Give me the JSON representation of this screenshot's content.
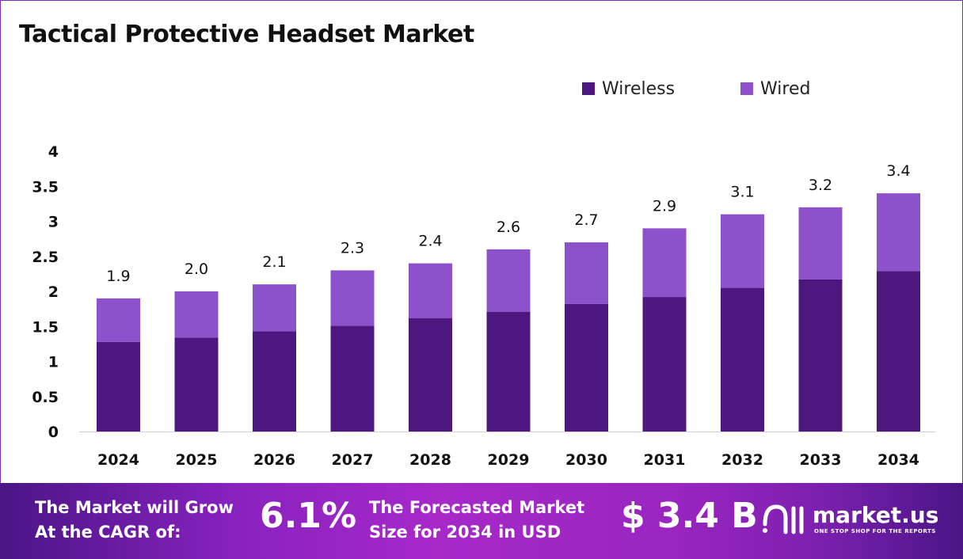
{
  "chart_data": {
    "type": "bar",
    "stacked": true,
    "title": "Tactical Protective Headset Market",
    "categories": [
      "2024",
      "2025",
      "2026",
      "2027",
      "2028",
      "2029",
      "2030",
      "2031",
      "2032",
      "2033",
      "2034"
    ],
    "series": [
      {
        "name": "Wireless",
        "color": "#4e1780",
        "values": [
          1.28,
          1.34,
          1.43,
          1.51,
          1.62,
          1.71,
          1.82,
          1.92,
          2.05,
          2.17,
          2.29
        ]
      },
      {
        "name": "Wired",
        "color": "#8e51cc",
        "values": [
          0.62,
          0.66,
          0.67,
          0.79,
          0.78,
          0.89,
          0.88,
          0.98,
          1.05,
          1.03,
          1.11
        ]
      }
    ],
    "totals_labels": [
      "1.9",
      "2.0",
      "2.1",
      "2.3",
      "2.4",
      "2.6",
      "2.7",
      "2.9",
      "3.1",
      "3.2",
      "3.4"
    ],
    "totals": [
      1.9,
      2.0,
      2.1,
      2.3,
      2.4,
      2.6,
      2.7,
      2.9,
      3.1,
      3.2,
      3.4
    ],
    "ylim": [
      0,
      4
    ],
    "yticks": [
      "0",
      "0.5",
      "1",
      "1.5",
      "2",
      "2.5",
      "3",
      "3.5",
      "4"
    ],
    "grid": false,
    "legend": "top-right",
    "xlabel": "",
    "ylabel": ""
  },
  "footer": {
    "cagr_text_1": "The Market will Grow",
    "cagr_text_2": "At the CAGR of:",
    "cagr_value": "6.1%",
    "size_text_1": "The Forecasted Market",
    "size_text_2": "Size for 2034 in USD",
    "size_value": "$ 3.4 B",
    "logo_name": "market.us",
    "logo_tagline": "ONE STOP SHOP FOR THE REPORTS"
  }
}
